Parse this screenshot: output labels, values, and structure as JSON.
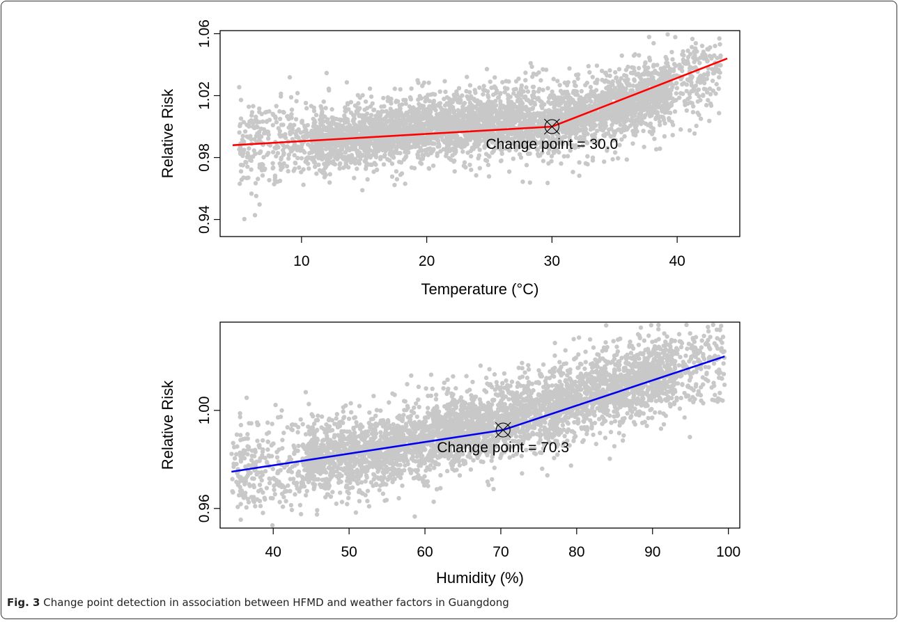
{
  "caption": {
    "label": "Fig. 3",
    "text": "Change point detection in association between HFMD and weather factors in Guangdong"
  },
  "chart_data": [
    {
      "type": "scatter",
      "xlabel": "Temperature (°C)",
      "ylabel": "Relative Risk",
      "xlim": [
        3.5,
        45
      ],
      "ylim": [
        0.929,
        1.062
      ],
      "xticks": [
        10,
        20,
        30,
        40
      ],
      "yticks": [
        0.94,
        0.98,
        1.02,
        1.06
      ],
      "ytick_labels": [
        "0.94",
        "0.98",
        "1.02",
        "1.06"
      ],
      "fit_line": {
        "color": "#ff0000",
        "x": [
          4.5,
          30.0,
          44.0
        ],
        "y": [
          0.988,
          1.0,
          1.044
        ]
      },
      "change_point": {
        "x": 30.0,
        "y": 1.0,
        "label": "Change point = 30.0"
      },
      "points_color": "#c8c8c8",
      "point_cloud": {
        "centers": [
          [
            5,
            0.988
          ],
          [
            10,
            0.99
          ],
          [
            15,
            0.993
          ],
          [
            20,
            0.998
          ],
          [
            25,
            1.003
          ],
          [
            30,
            1.004
          ],
          [
            35,
            1.012
          ],
          [
            40,
            1.026
          ],
          [
            43.5,
            1.038
          ]
        ],
        "x_range": [
          5,
          43.5
        ],
        "y_spread": 0.025
      }
    },
    {
      "type": "scatter",
      "xlabel": "Humidity (%)",
      "ylabel": "Relative Risk",
      "xlim": [
        33,
        101.5
      ],
      "ylim": [
        0.952,
        1.036
      ],
      "xticks": [
        40,
        50,
        60,
        70,
        80,
        90,
        100
      ],
      "yticks": [
        0.96,
        1.0
      ],
      "ytick_labels": [
        "0.96",
        "1.00"
      ],
      "fit_line": {
        "color": "#0000ee",
        "x": [
          34.5,
          70.3,
          99.5
        ],
        "y": [
          0.975,
          0.992,
          1.022
        ]
      },
      "change_point": {
        "x": 70.3,
        "y": 0.992,
        "label": "Change point = 70.3"
      },
      "points_color": "#c8c8c8",
      "point_cloud": {
        "centers": [
          [
            35,
            0.975
          ],
          [
            45,
            0.98
          ],
          [
            55,
            0.984
          ],
          [
            65,
            0.992
          ],
          [
            75,
            1.0
          ],
          [
            85,
            1.01
          ],
          [
            95,
            1.018
          ],
          [
            99,
            1.022
          ]
        ],
        "x_range": [
          34.5,
          99.5
        ],
        "y_spread": 0.018
      }
    }
  ]
}
